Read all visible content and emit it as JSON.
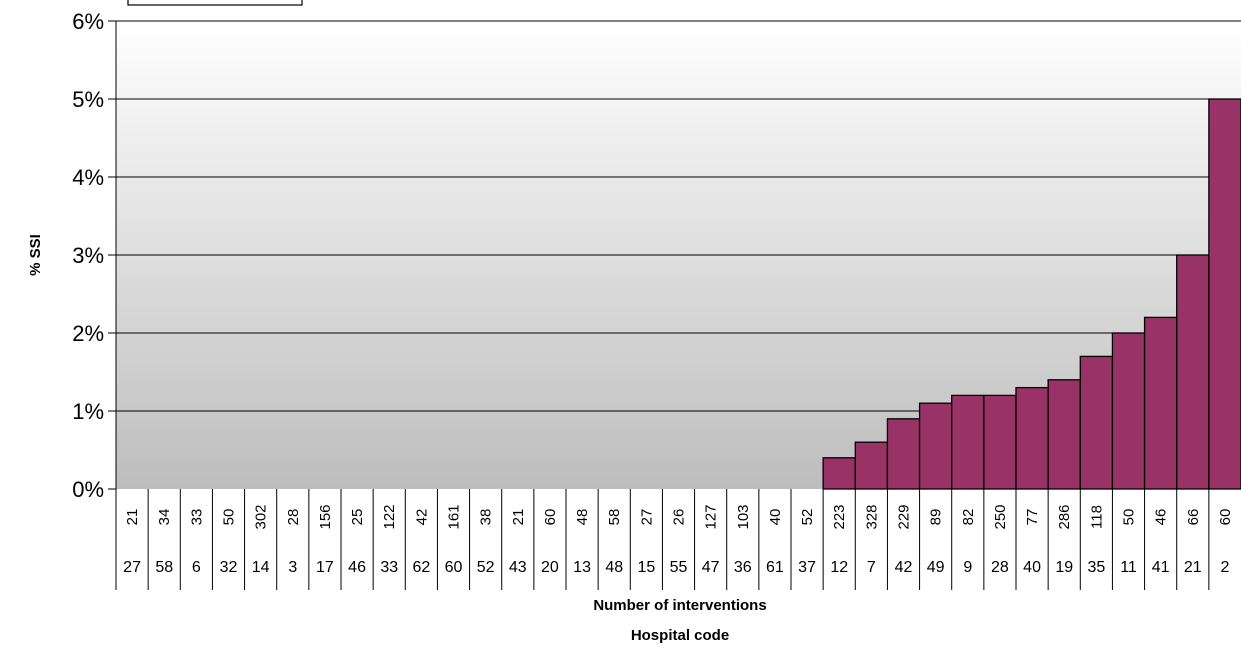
{
  "chart_data": {
    "type": "bar",
    "ylabel": "% SSI",
    "xlabel_line1": "Number of interventions",
    "xlabel_line2": "Hospital code",
    "ylim": [
      0,
      6
    ],
    "yticks": [
      "0%",
      "1%",
      "2%",
      "3%",
      "4%",
      "5%",
      "6%"
    ],
    "grid": true,
    "bar_color": "#993366",
    "categories": [
      {
        "interventions": "21",
        "hospital_code": "27",
        "ssi_percent": 0
      },
      {
        "interventions": "34",
        "hospital_code": "58",
        "ssi_percent": 0
      },
      {
        "interventions": "33",
        "hospital_code": "6",
        "ssi_percent": 0
      },
      {
        "interventions": "50",
        "hospital_code": "32",
        "ssi_percent": 0
      },
      {
        "interventions": "302",
        "hospital_code": "14",
        "ssi_percent": 0
      },
      {
        "interventions": "28",
        "hospital_code": "3",
        "ssi_percent": 0
      },
      {
        "interventions": "156",
        "hospital_code": "17",
        "ssi_percent": 0
      },
      {
        "interventions": "25",
        "hospital_code": "46",
        "ssi_percent": 0
      },
      {
        "interventions": "122",
        "hospital_code": "33",
        "ssi_percent": 0
      },
      {
        "interventions": "42",
        "hospital_code": "62",
        "ssi_percent": 0
      },
      {
        "interventions": "161",
        "hospital_code": "60",
        "ssi_percent": 0
      },
      {
        "interventions": "38",
        "hospital_code": "52",
        "ssi_percent": 0
      },
      {
        "interventions": "21",
        "hospital_code": "43",
        "ssi_percent": 0
      },
      {
        "interventions": "60",
        "hospital_code": "20",
        "ssi_percent": 0
      },
      {
        "interventions": "48",
        "hospital_code": "13",
        "ssi_percent": 0
      },
      {
        "interventions": "58",
        "hospital_code": "48",
        "ssi_percent": 0
      },
      {
        "interventions": "27",
        "hospital_code": "15",
        "ssi_percent": 0
      },
      {
        "interventions": "26",
        "hospital_code": "55",
        "ssi_percent": 0
      },
      {
        "interventions": "127",
        "hospital_code": "47",
        "ssi_percent": 0
      },
      {
        "interventions": "103",
        "hospital_code": "36",
        "ssi_percent": 0
      },
      {
        "interventions": "40",
        "hospital_code": "61",
        "ssi_percent": 0
      },
      {
        "interventions": "52",
        "hospital_code": "37",
        "ssi_percent": 0
      },
      {
        "interventions": "223",
        "hospital_code": "12",
        "ssi_percent": 0.4
      },
      {
        "interventions": "328",
        "hospital_code": "7",
        "ssi_percent": 0.6
      },
      {
        "interventions": "229",
        "hospital_code": "42",
        "ssi_percent": 0.9
      },
      {
        "interventions": "89",
        "hospital_code": "49",
        "ssi_percent": 1.1
      },
      {
        "interventions": "82",
        "hospital_code": "9",
        "ssi_percent": 1.2
      },
      {
        "interventions": "250",
        "hospital_code": "28",
        "ssi_percent": 1.2
      },
      {
        "interventions": "77",
        "hospital_code": "40",
        "ssi_percent": 1.3
      },
      {
        "interventions": "286",
        "hospital_code": "19",
        "ssi_percent": 1.4
      },
      {
        "interventions": "118",
        "hospital_code": "35",
        "ssi_percent": 1.7
      },
      {
        "interventions": "50",
        "hospital_code": "11",
        "ssi_percent": 2.0
      },
      {
        "interventions": "46",
        "hospital_code": "41",
        "ssi_percent": 2.2
      },
      {
        "interventions": "66",
        "hospital_code": "21",
        "ssi_percent": 3.0
      },
      {
        "interventions": "60",
        "hospital_code": "2",
        "ssi_percent": 5.0
      }
    ]
  }
}
